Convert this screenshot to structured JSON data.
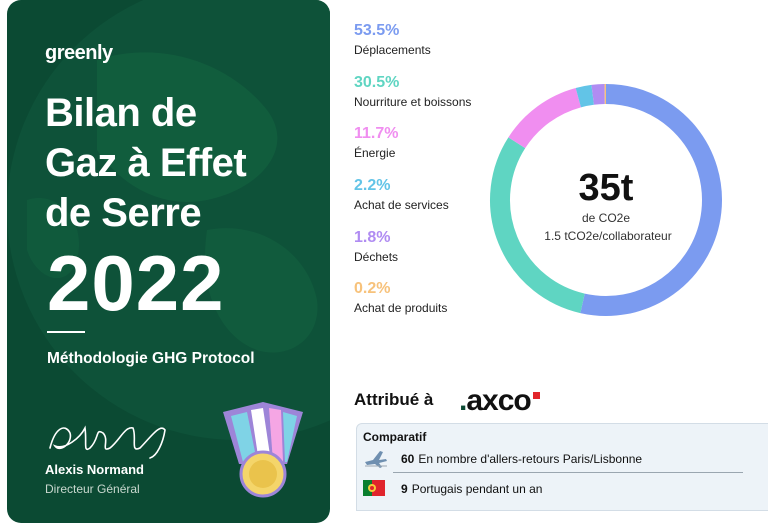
{
  "card": {
    "brand": "greenly",
    "title_lines": [
      "Bilan de",
      "Gaz à Effet",
      "de Serre"
    ],
    "year": "2022",
    "methodology": "Méthodologie GHG Protocol",
    "signer_name": "Alexis Normand",
    "signer_role": "Directeur Général"
  },
  "breakdown": [
    {
      "percent": "53.5%",
      "label": "Déplacements",
      "value": 53.5,
      "color": "#7b9bf0"
    },
    {
      "percent": "30.5%",
      "label": "Nourriture et boissons",
      "value": 30.5,
      "color": "#5fd5c2"
    },
    {
      "percent": "11.7%",
      "label": "Énergie",
      "value": 11.7,
      "color": "#f08ef0"
    },
    {
      "percent": "2.2%",
      "label": "Achat de services",
      "value": 2.2,
      "color": "#62c4e7"
    },
    {
      "percent": "1.8%",
      "label": "Déchets",
      "value": 1.8,
      "color": "#b08cf2"
    },
    {
      "percent": "0.2%",
      "label": "Achat de produits",
      "value": 0.2,
      "color": "#f7c27b"
    }
  ],
  "total": {
    "value": "35t",
    "unit": "de CO2e",
    "per_employee": "1.5 tCO2e/collaborateur"
  },
  "attribution": {
    "label": "Attribué à",
    "company": "axco"
  },
  "comparatif": {
    "title": "Comparatif",
    "rows": [
      {
        "icon": "airplane-icon",
        "count": "60",
        "text": "En nombre d'allers-retours Paris/Lisbonne"
      },
      {
        "icon": "portugal-flag-icon",
        "count": "9",
        "text": "Portugais pendant un an"
      }
    ]
  }
}
